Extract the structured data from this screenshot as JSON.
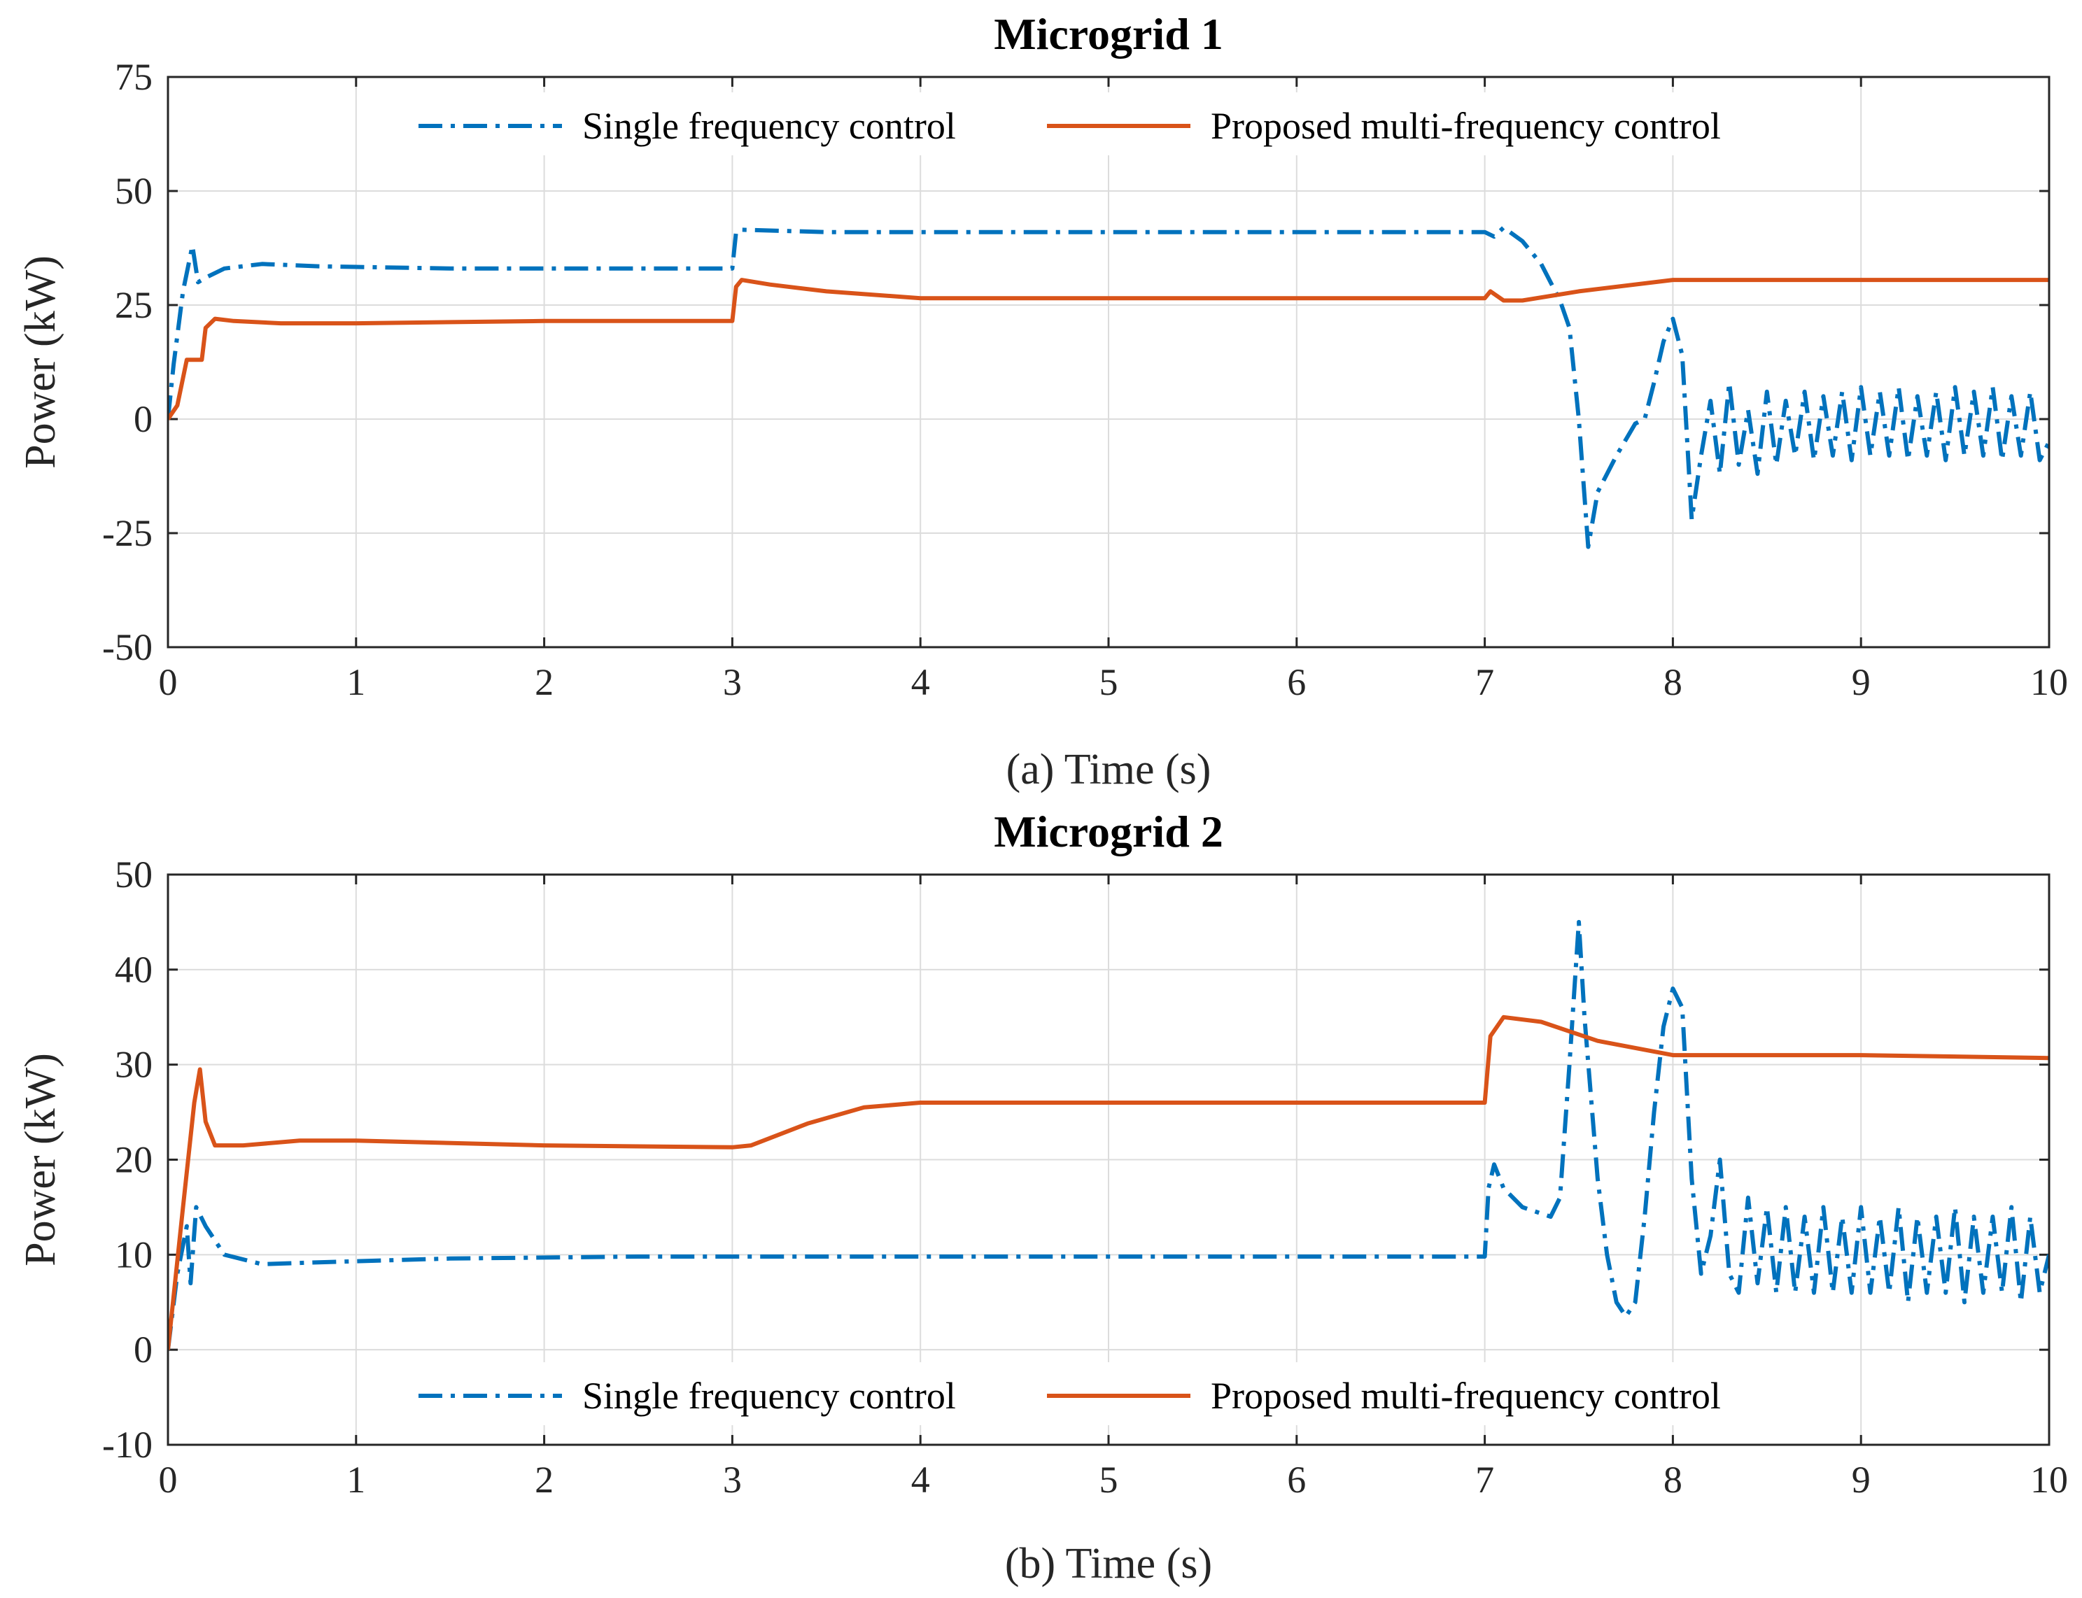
{
  "chart_data": [
    {
      "type": "line",
      "title": "Microgrid 1",
      "xlabel": "(a) Time (s)",
      "ylabel": "Power (kW)",
      "xlim": [
        0,
        10
      ],
      "ylim": [
        -50,
        75
      ],
      "xticks": [
        "0",
        "1",
        "2",
        "3",
        "4",
        "5",
        "6",
        "7",
        "8",
        "9",
        "10"
      ],
      "yticks": [
        "75",
        "50",
        "25",
        "0",
        "-25",
        "-50"
      ],
      "grid": true,
      "legend_position": "top",
      "series": [
        {
          "name": "Single frequency control",
          "style": "dash-dot",
          "color": "#0072bd",
          "x": [
            0,
            0.03,
            0.08,
            0.13,
            0.16,
            0.2,
            0.3,
            0.5,
            0.8,
            1.5,
            2.5,
            3.0,
            3.02,
            3.05,
            3.5,
            5,
            6.5,
            7.0,
            7.05,
            7.1,
            7.2,
            7.3,
            7.4,
            7.45,
            7.5,
            7.55,
            7.6,
            7.7,
            7.8,
            7.85,
            7.9,
            7.95,
            8.0,
            8.05,
            8.1,
            8.15,
            8.2,
            8.25,
            8.3,
            8.35,
            8.4,
            8.45,
            8.5,
            8.55,
            8.6,
            8.65,
            8.7,
            8.75,
            8.8,
            8.85,
            8.9,
            8.95,
            9.0,
            9.05,
            9.1,
            9.15,
            9.2,
            9.25,
            9.3,
            9.35,
            9.4,
            9.45,
            9.5,
            9.55,
            9.6,
            9.65,
            9.7,
            9.75,
            9.8,
            9.85,
            9.9,
            9.95,
            10.0
          ],
          "values": [
            0,
            12,
            28,
            38,
            30,
            31,
            33,
            34,
            33.5,
            33,
            33,
            33,
            41,
            41.5,
            41,
            41,
            41,
            41,
            40,
            42,
            39,
            34,
            26,
            20,
            0,
            -28,
            -16,
            -8,
            -1,
            0,
            8,
            17,
            22,
            14,
            -22,
            -8,
            4,
            -12,
            8,
            -10,
            2,
            -12,
            6,
            -10,
            4,
            -8,
            6,
            -9,
            5,
            -8,
            6,
            -9,
            7,
            -8,
            6,
            -8,
            7,
            -9,
            5,
            -8,
            6,
            -9,
            7,
            -8,
            6,
            -8,
            7,
            -9,
            5,
            -8,
            6,
            -9,
            -5
          ]
        },
        {
          "name": "Proposed multi-frequency control",
          "style": "solid",
          "color": "#d95319",
          "x": [
            0,
            0.05,
            0.1,
            0.12,
            0.18,
            0.2,
            0.25,
            0.35,
            0.6,
            1,
            2,
            3.0,
            3.02,
            3.05,
            3.2,
            3.5,
            4,
            5,
            6,
            6.95,
            7.0,
            7.03,
            7.1,
            7.2,
            7.5,
            8,
            9,
            10
          ],
          "values": [
            0,
            3,
            13,
            13,
            13,
            20,
            22,
            21.5,
            21,
            21,
            21.5,
            21.5,
            29,
            30.5,
            29.5,
            28,
            26.5,
            26.5,
            26.5,
            26.5,
            26.5,
            28,
            26,
            26,
            28,
            30.5,
            30.5,
            30.5
          ]
        }
      ]
    },
    {
      "type": "line",
      "title": "Microgrid 2",
      "xlabel": "(b) Time (s)",
      "ylabel": "Power (kW)",
      "xlim": [
        0,
        10
      ],
      "ylim": [
        -10,
        50
      ],
      "xticks": [
        "0",
        "1",
        "2",
        "3",
        "4",
        "5",
        "6",
        "7",
        "8",
        "9",
        "10"
      ],
      "yticks": [
        "50",
        "40",
        "30",
        "20",
        "10",
        "0",
        "-10"
      ],
      "grid": true,
      "legend_position": "bottom",
      "series": [
        {
          "name": "Single frequency control",
          "style": "dash-dot",
          "color": "#0072bd",
          "x": [
            0,
            0.05,
            0.1,
            0.12,
            0.15,
            0.2,
            0.3,
            0.5,
            0.8,
            1.5,
            2.5,
            3.5,
            5,
            6,
            7.0,
            7.02,
            7.05,
            7.1,
            7.2,
            7.35,
            7.4,
            7.45,
            7.5,
            7.53,
            7.6,
            7.65,
            7.7,
            7.75,
            7.8,
            7.85,
            7.9,
            7.95,
            8.0,
            8.05,
            8.1,
            8.15,
            8.2,
            8.25,
            8.3,
            8.35,
            8.4,
            8.45,
            8.5,
            8.55,
            8.6,
            8.65,
            8.7,
            8.75,
            8.8,
            8.85,
            8.9,
            8.95,
            9.0,
            9.05,
            9.1,
            9.15,
            9.2,
            9.25,
            9.3,
            9.35,
            9.4,
            9.45,
            9.5,
            9.55,
            9.6,
            9.65,
            9.7,
            9.75,
            9.8,
            9.85,
            9.9,
            9.95,
            10.0
          ],
          "values": [
            0,
            8,
            13,
            7,
            15,
            13,
            10,
            9,
            9.2,
            9.6,
            9.8,
            9.8,
            9.8,
            9.8,
            9.8,
            17,
            19.5,
            17,
            15,
            14,
            16,
            30,
            45,
            35,
            18,
            10,
            5,
            3.5,
            5,
            14,
            25,
            34,
            38,
            36,
            18,
            8,
            12,
            20,
            8,
            6,
            16,
            7,
            15,
            6,
            15,
            6,
            14,
            6,
            15,
            6,
            14,
            6,
            15,
            6,
            14,
            6,
            15,
            5,
            14,
            6,
            14,
            6,
            15,
            5,
            14,
            6,
            14,
            6,
            15,
            5,
            14,
            6,
            10
          ]
        },
        {
          "name": "Proposed multi-frequency control",
          "style": "solid",
          "color": "#d95319",
          "x": [
            0,
            0.08,
            0.14,
            0.17,
            0.2,
            0.25,
            0.4,
            0.7,
            1,
            2,
            3.0,
            3.1,
            3.4,
            3.7,
            4,
            5,
            6,
            6.95,
            7.0,
            7.03,
            7.1,
            7.3,
            7.6,
            8,
            9,
            10
          ],
          "values": [
            0,
            15,
            26,
            29.5,
            24,
            21.5,
            21.5,
            22,
            22,
            21.5,
            21.3,
            21.5,
            23.8,
            25.5,
            26,
            26,
            26,
            26,
            26,
            33,
            35,
            34.5,
            32.5,
            31,
            31,
            30.7
          ]
        }
      ]
    }
  ]
}
